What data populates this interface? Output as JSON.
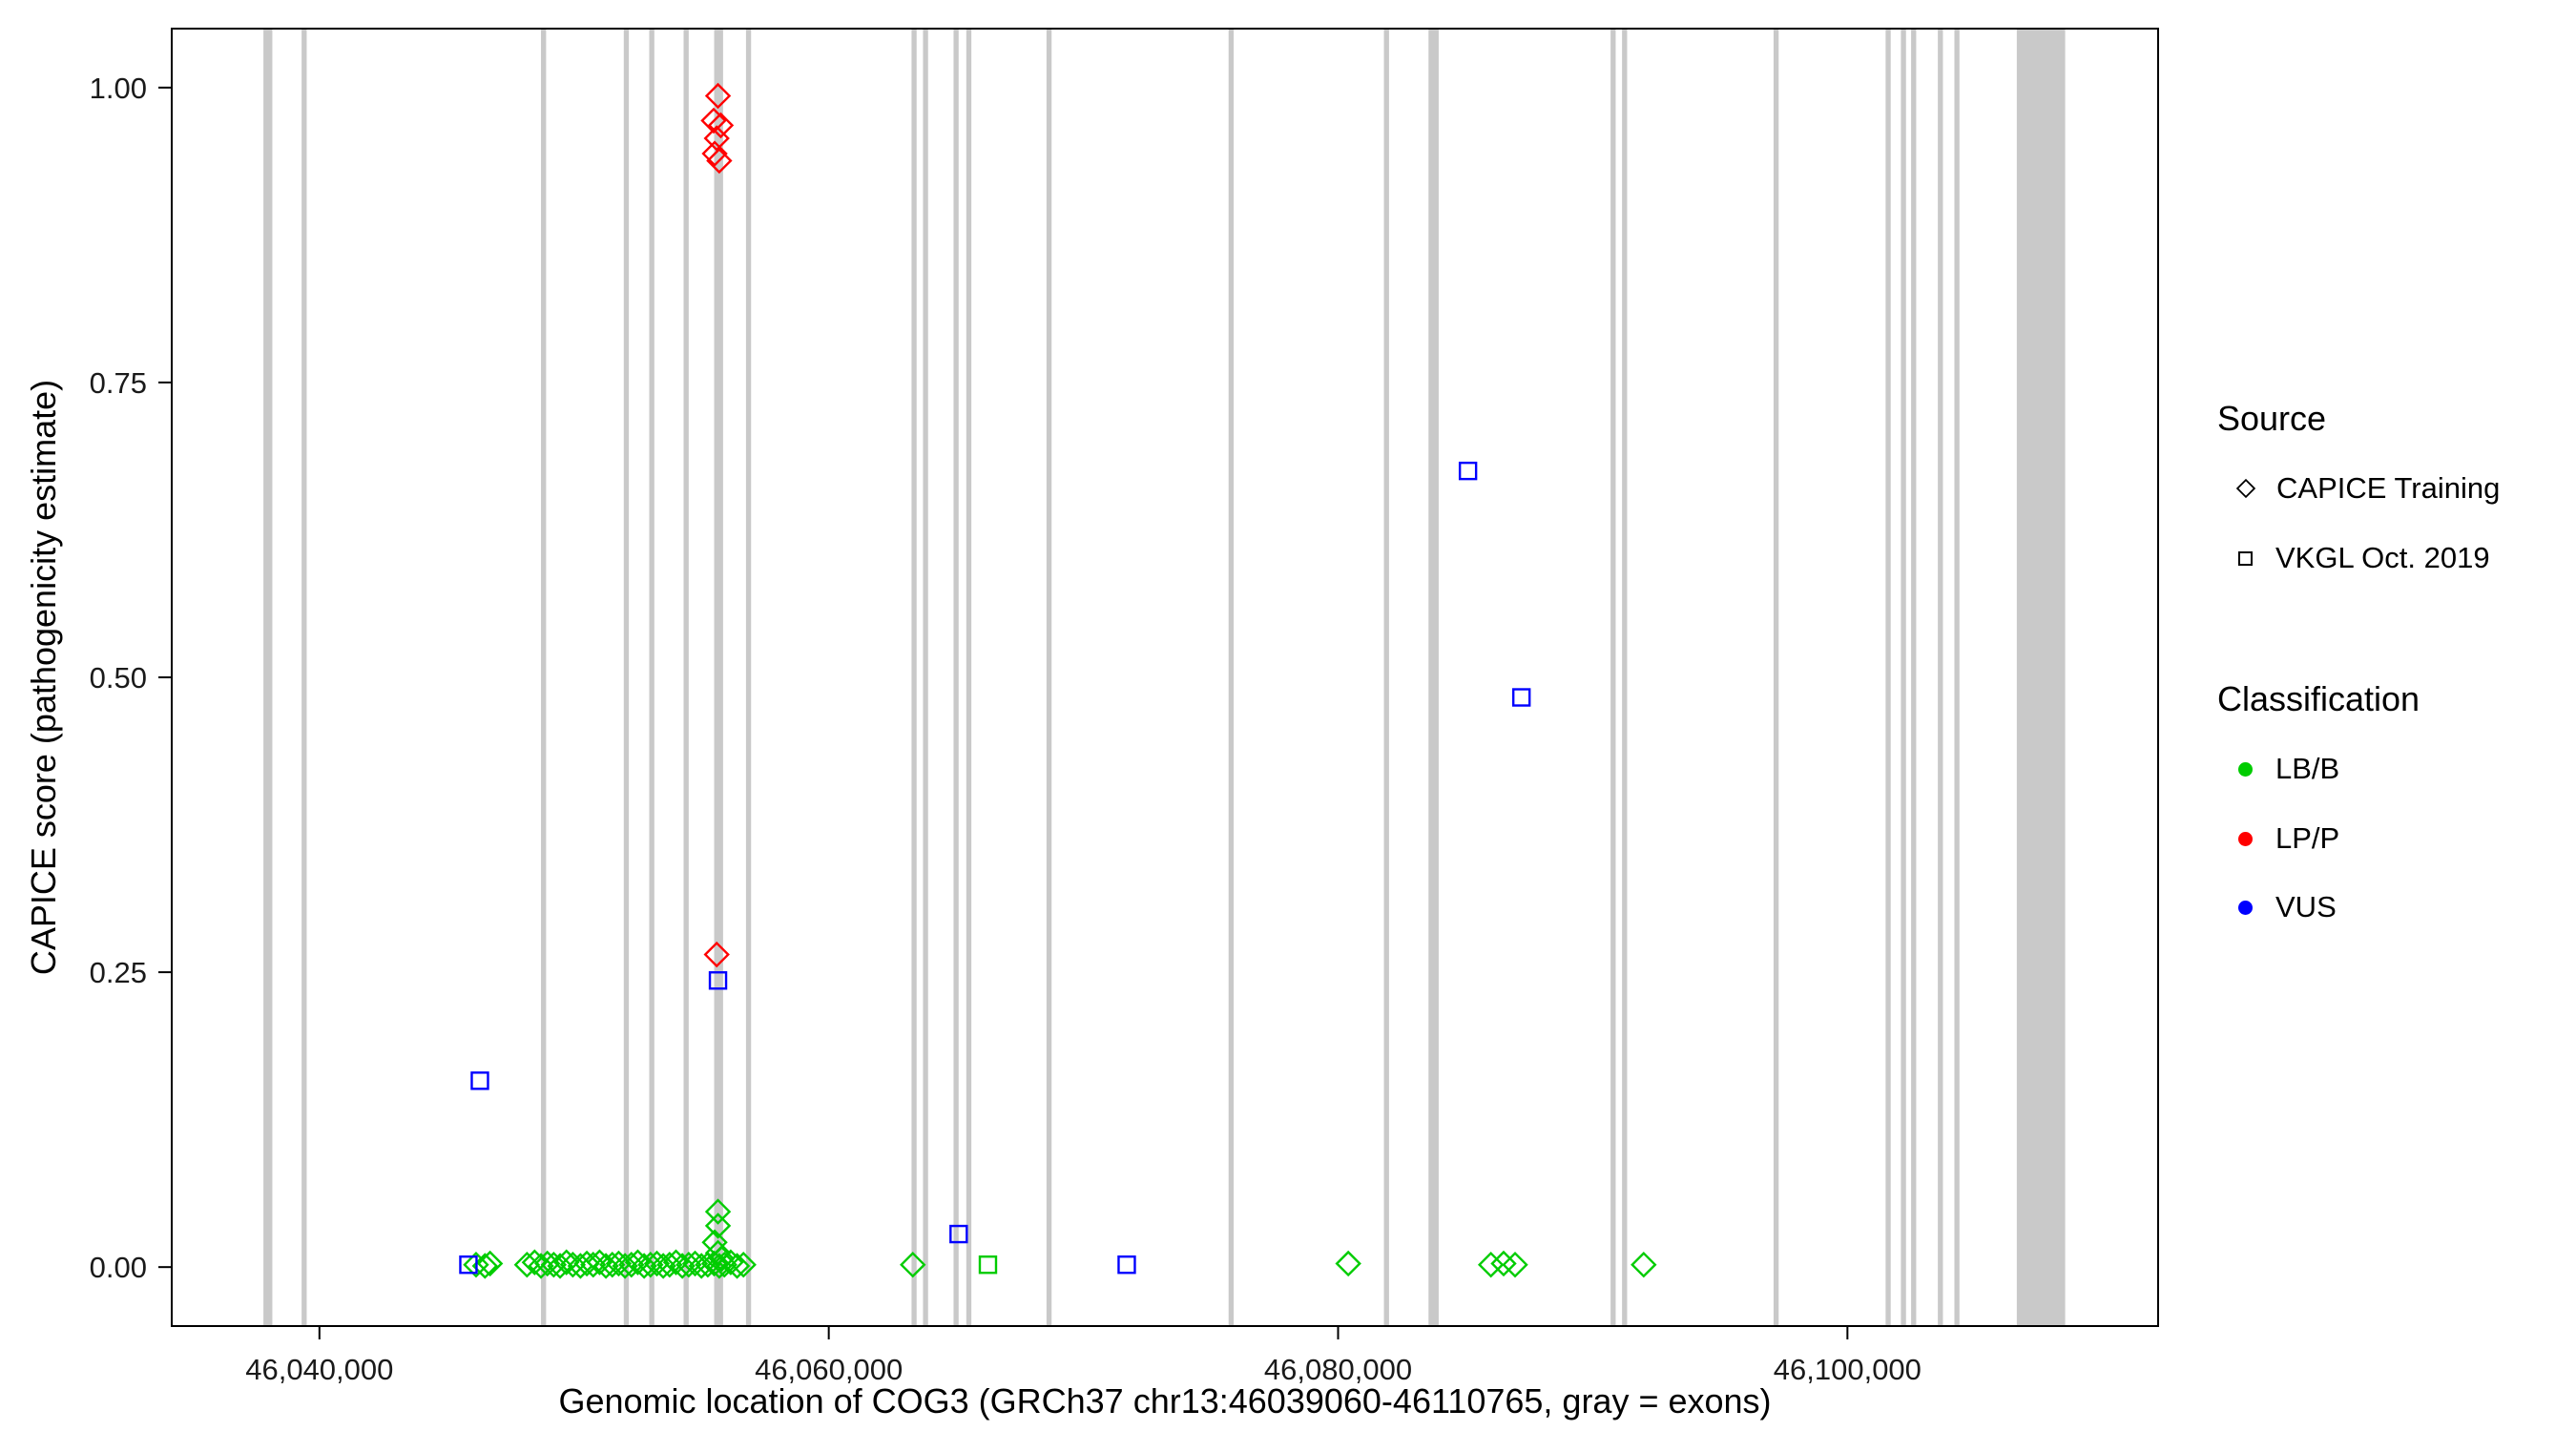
{
  "legend": {
    "source": {
      "title": "Source",
      "items": [
        {
          "label": "CAPICE Training",
          "shape": "diamond"
        },
        {
          "label": "VKGL Oct. 2019",
          "shape": "square"
        }
      ]
    },
    "classification": {
      "title": "Classification",
      "items": [
        {
          "label": "LB/B",
          "color": "#00CC00"
        },
        {
          "label": "LP/P",
          "color": "#FF0000"
        },
        {
          "label": "VUS",
          "color": "#0000FF"
        }
      ]
    }
  },
  "chart_data": {
    "type": "scatter",
    "title": "",
    "xlabel": "Genomic location of COG3 (GRCh37 chr13:46039060-46110765, gray = exons)",
    "ylabel": "CAPICE score (pathogenicity estimate)",
    "xlim": [
      46034200,
      46112200
    ],
    "ylim": [
      -0.05,
      1.05
    ],
    "legend_position": "right",
    "grid": false,
    "x_ticks": [
      {
        "value": 46040000,
        "label": "46,040,000"
      },
      {
        "value": 46060000,
        "label": "46,060,000"
      },
      {
        "value": 46080000,
        "label": "46,080,000"
      },
      {
        "value": 46100000,
        "label": "46,100,000"
      }
    ],
    "y_ticks": [
      {
        "value": 0.0,
        "label": "0.00"
      },
      {
        "value": 0.25,
        "label": "0.25"
      },
      {
        "value": 0.5,
        "label": "0.50"
      },
      {
        "value": 0.75,
        "label": "0.75"
      },
      {
        "value": 1.0,
        "label": "1.00"
      }
    ],
    "exon_color": "#C9C9C9",
    "exons": [
      [
        46037800,
        46038150
      ],
      [
        46039300,
        46039500
      ],
      [
        46048700,
        46048900
      ],
      [
        46051950,
        46052150
      ],
      [
        46052950,
        46053150
      ],
      [
        46054300,
        46054500
      ],
      [
        46055500,
        46055850
      ],
      [
        46056750,
        46056950
      ],
      [
        46063250,
        46063450
      ],
      [
        46063700,
        46063900
      ],
      [
        46064900,
        46065100
      ],
      [
        46065400,
        46065600
      ],
      [
        46068550,
        46068750
      ],
      [
        46075700,
        46075900
      ],
      [
        46081800,
        46082000
      ],
      [
        46083550,
        46083950
      ],
      [
        46090700,
        46090900
      ],
      [
        46091150,
        46091350
      ],
      [
        46097100,
        46097300
      ],
      [
        46101500,
        46101700
      ],
      [
        46102100,
        46102300
      ],
      [
        46102500,
        46102700
      ],
      [
        46103550,
        46103750
      ],
      [
        46104200,
        46104400
      ],
      [
        46106650,
        46108550
      ]
    ],
    "series": [
      {
        "name": "CAPICE Training - LP/P",
        "source": "CAPICE Training",
        "classification": "LP/P",
        "shape": "diamond",
        "color": "#FF0000",
        "points": [
          [
            46055650,
            0.993
          ],
          [
            46055480,
            0.972
          ],
          [
            46055760,
            0.968
          ],
          [
            46055600,
            0.957
          ],
          [
            46055520,
            0.944
          ],
          [
            46055700,
            0.938
          ],
          [
            46055600,
            0.265
          ]
        ]
      },
      {
        "name": "CAPICE Training - LB/B",
        "source": "CAPICE Training",
        "classification": "LB/B",
        "shape": "diamond",
        "color": "#00CC00",
        "points": [
          [
            46055650,
            0.047
          ],
          [
            46055650,
            0.035
          ],
          [
            46055520,
            0.021
          ],
          [
            46055650,
            0.012
          ],
          [
            46055800,
            0.007
          ],
          [
            46046150,
            0.002
          ],
          [
            46046500,
            0.001
          ],
          [
            46046700,
            0.003
          ],
          [
            46048150,
            0.002
          ],
          [
            46048450,
            0.004
          ],
          [
            46048700,
            0.001
          ],
          [
            46048950,
            0.003
          ],
          [
            46049200,
            0.002
          ],
          [
            46049450,
            0.001
          ],
          [
            46049700,
            0.004
          ],
          [
            46049950,
            0.002
          ],
          [
            46050250,
            0.001
          ],
          [
            46050500,
            0.003
          ],
          [
            46050750,
            0.002
          ],
          [
            46051000,
            0.004
          ],
          [
            46051250,
            0.001
          ],
          [
            46051500,
            0.002
          ],
          [
            46051750,
            0.003
          ],
          [
            46052000,
            0.001
          ],
          [
            46052250,
            0.002
          ],
          [
            46052500,
            0.004
          ],
          [
            46052750,
            0.001
          ],
          [
            46053000,
            0.002
          ],
          [
            46053250,
            0.003
          ],
          [
            46053500,
            0.001
          ],
          [
            46053750,
            0.002
          ],
          [
            46054000,
            0.004
          ],
          [
            46054250,
            0.001
          ],
          [
            46054500,
            0.002
          ],
          [
            46054750,
            0.003
          ],
          [
            46055000,
            0.001
          ],
          [
            46055250,
            0.002
          ],
          [
            46055500,
            0.003
          ],
          [
            46055700,
            0.001
          ],
          [
            46055900,
            0.002
          ],
          [
            46056150,
            0.004
          ],
          [
            46056400,
            0.001
          ],
          [
            46056650,
            0.002
          ],
          [
            46063300,
            0.002
          ],
          [
            46080400,
            0.003
          ],
          [
            46086000,
            0.002
          ],
          [
            46086500,
            0.003
          ],
          [
            46086950,
            0.002
          ],
          [
            46092000,
            0.002
          ]
        ]
      },
      {
        "name": "VKGL Oct. 2019 - VUS",
        "source": "VKGL Oct. 2019",
        "classification": "VUS",
        "shape": "square",
        "color": "#0000FF",
        "points": [
          [
            46085100,
            0.675
          ],
          [
            46087200,
            0.483
          ],
          [
            46055650,
            0.243
          ],
          [
            46046300,
            0.158
          ],
          [
            46065100,
            0.028
          ],
          [
            46071700,
            0.002
          ],
          [
            46045850,
            0.002
          ]
        ]
      },
      {
        "name": "VKGL Oct. 2019 - LB/B",
        "source": "VKGL Oct. 2019",
        "classification": "LB/B",
        "shape": "square",
        "color": "#00CC00",
        "points": [
          [
            46066250,
            0.002
          ]
        ]
      }
    ]
  }
}
